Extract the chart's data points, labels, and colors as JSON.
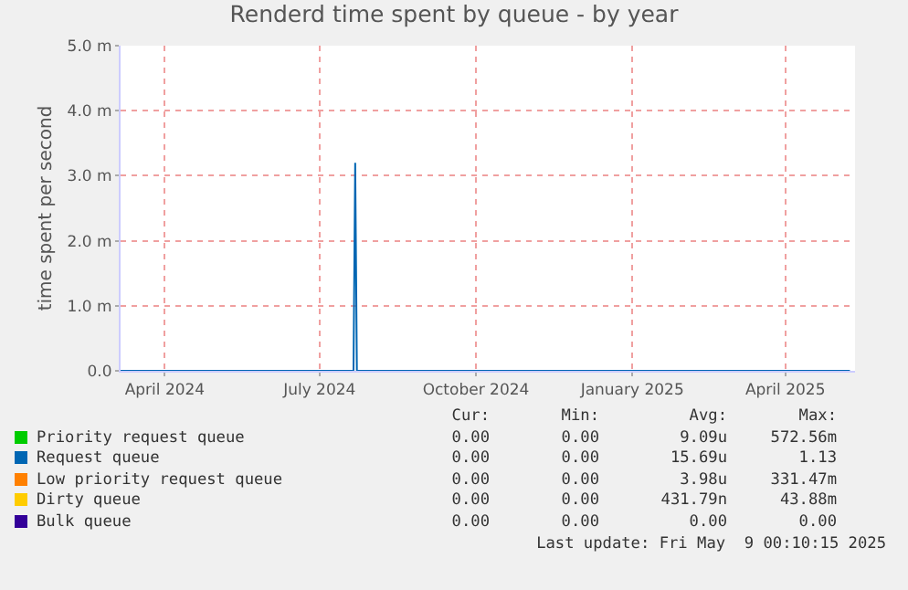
{
  "chart_data": {
    "type": "line",
    "title": "Renderd time spent by queue - by year",
    "ylabel": "time spent per second",
    "xlim": [
      "2024-03-06",
      "2025-05-12"
    ],
    "xticks": [
      {
        "value": "2024-04-01",
        "label": "April 2024"
      },
      {
        "value": "2024-07-01",
        "label": "July 2024"
      },
      {
        "value": "2024-10-01",
        "label": "October 2024"
      },
      {
        "value": "2025-01-01",
        "label": "January 2025"
      },
      {
        "value": "2025-04-01",
        "label": "April 2025"
      }
    ],
    "ylim": [
      0,
      5
    ],
    "yticks": [
      {
        "value": 0,
        "label": "0.0"
      },
      {
        "value": 1,
        "label": "1.0 m"
      },
      {
        "value": 2,
        "label": "2.0 m"
      },
      {
        "value": 3,
        "label": "3.0 m"
      },
      {
        "value": 4,
        "label": "4.0 m"
      },
      {
        "value": 5,
        "label": "5.0 m"
      }
    ],
    "grid": true,
    "legend": "bottom",
    "marker": "none",
    "line_style": "solid",
    "series": [
      {
        "name": "Priority request queue",
        "color": "#00cc00"
      },
      {
        "name": "Request queue",
        "color": "#0066b3",
        "x": [
          "2024-03-06",
          "2024-07-21",
          "2024-07-22",
          "2024-07-23",
          "2025-05-09"
        ],
        "values": [
          0,
          0,
          3.2,
          0,
          0
        ]
      },
      {
        "name": "Low priority request queue",
        "color": "#ff8000"
      },
      {
        "name": "Dirty queue",
        "color": "#ffcc00"
      },
      {
        "name": "Bulk queue",
        "color": "#330099"
      }
    ],
    "annotations": [
      "Cur:",
      "Min:",
      "Avg:",
      "Max:",
      "0.00",
      "0.00",
      "9.09u",
      "572.56m",
      "0.00",
      "0.00",
      "15.69u",
      "1.13",
      "0.00",
      "0.00",
      "3.98u",
      "331.47m",
      "0.00",
      "0.00",
      "431.79n",
      "43.88m",
      "0.00",
      "0.00",
      "0.00",
      "0.00",
      "Last update: Fri May  9 00:10:15 2025"
    ]
  }
}
